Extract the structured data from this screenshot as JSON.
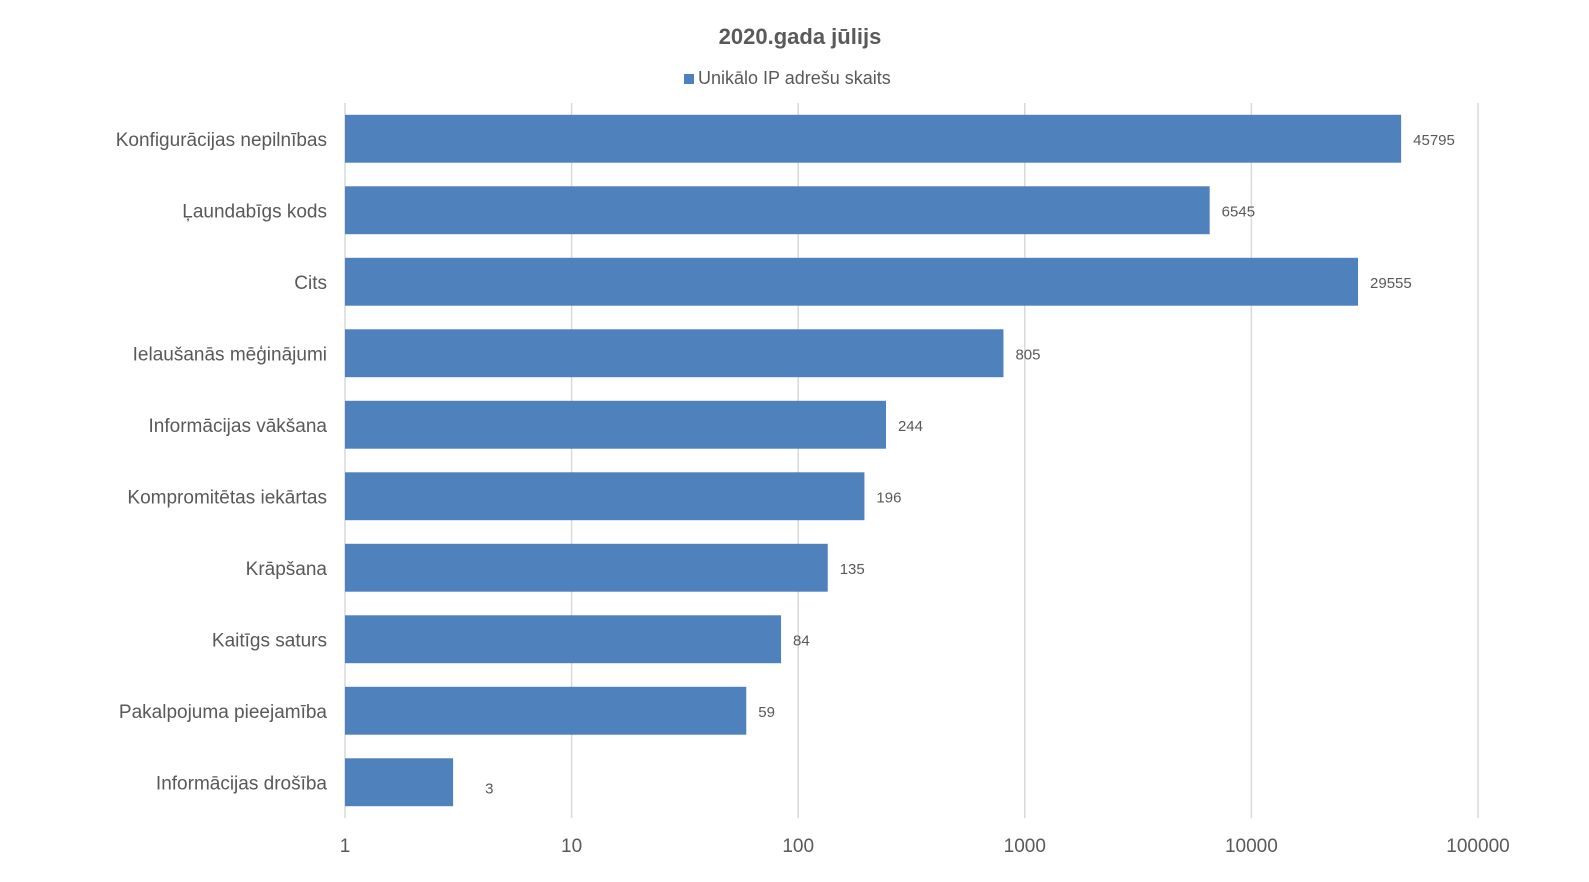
{
  "chart_data": {
    "type": "bar",
    "orientation": "horizontal",
    "title": "2020.gada jūlijs",
    "xlabel": "",
    "ylabel": "",
    "xscale": "log",
    "xlim": [
      1,
      100000
    ],
    "x_ticks": [
      "1",
      "10",
      "100",
      "1000",
      "10000",
      "100000"
    ],
    "grid": true,
    "legend_position": "top",
    "categories": [
      "Konfigurācijas nepilnības",
      "Ļaundabīgs kods",
      "Cits",
      "Ielaušanās mēģinājumi",
      "Informācijas vākšana",
      "Kompromitētas iekārtas",
      "Krāpšana",
      "Kaitīgs saturs",
      "Pakalpojuma pieejamība",
      "Informācijas drošība"
    ],
    "series": [
      {
        "name": "Unikālo IP adrešu skaits",
        "color": "#4f81bd",
        "values": [
          45795,
          6545,
          29555,
          805,
          244,
          196,
          135,
          84,
          59,
          3
        ]
      }
    ]
  }
}
